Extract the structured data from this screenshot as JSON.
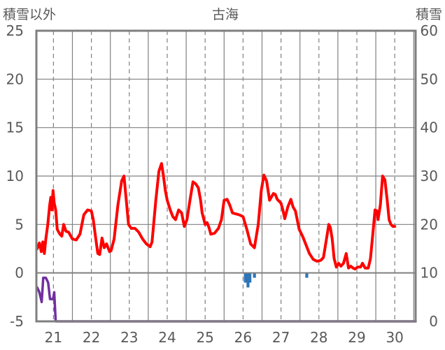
{
  "chart_data": {
    "type": "line",
    "title": "古海",
    "ylabel_left": "積雪以外",
    "ylabel_right": "積雪",
    "grid": true,
    "x_ticks": [
      "21",
      "22",
      "23",
      "24",
      "25",
      "26",
      "27",
      "28",
      "29",
      "30"
    ],
    "x_range": [
      20.55,
      30.55
    ],
    "y_left": {
      "ticks": [
        25,
        20,
        15,
        10,
        5,
        0,
        -5
      ],
      "range": [
        -5,
        25
      ]
    },
    "y_right": {
      "ticks": [
        60,
        50,
        40,
        30,
        20,
        10,
        0
      ],
      "range": [
        0,
        60
      ]
    },
    "colors": {
      "temperature": "#ff0000",
      "precipitation": "#7030a0",
      "snow_depth": "#2e75b6",
      "axis": "#7f7f7f",
      "grid": "#808080"
    },
    "series": [
      {
        "axis": "left",
        "style": "line",
        "color": "#ff0000",
        "points": [
          [
            20.57,
            2.5
          ],
          [
            20.63,
            3.1
          ],
          [
            20.68,
            2.2
          ],
          [
            20.72,
            3.2
          ],
          [
            20.76,
            2.0
          ],
          [
            20.8,
            3.5
          ],
          [
            20.85,
            5.0
          ],
          [
            20.9,
            7.0
          ],
          [
            20.93,
            7.8
          ],
          [
            20.96,
            6.5
          ],
          [
            20.99,
            8.5
          ],
          [
            21.02,
            7.2
          ],
          [
            21.06,
            6.5
          ],
          [
            21.1,
            4.5
          ],
          [
            21.17,
            4.0
          ],
          [
            21.22,
            3.8
          ],
          [
            21.27,
            5.0
          ],
          [
            21.33,
            4.3
          ],
          [
            21.4,
            4.2
          ],
          [
            21.5,
            3.5
          ],
          [
            21.6,
            3.4
          ],
          [
            21.7,
            4.0
          ],
          [
            21.8,
            6.0
          ],
          [
            21.9,
            6.5
          ],
          [
            22.0,
            6.4
          ],
          [
            22.05,
            5.5
          ],
          [
            22.1,
            4.0
          ],
          [
            22.17,
            2.0
          ],
          [
            22.22,
            1.9
          ],
          [
            22.28,
            3.6
          ],
          [
            22.34,
            2.6
          ],
          [
            22.4,
            3.0
          ],
          [
            22.48,
            2.2
          ],
          [
            22.52,
            2.3
          ],
          [
            22.6,
            3.5
          ],
          [
            22.7,
            7.0
          ],
          [
            22.8,
            9.5
          ],
          [
            22.86,
            10.0
          ],
          [
            22.92,
            7.5
          ],
          [
            22.98,
            5.0
          ],
          [
            23.05,
            4.6
          ],
          [
            23.15,
            4.6
          ],
          [
            23.25,
            4.2
          ],
          [
            23.35,
            3.5
          ],
          [
            23.45,
            3.0
          ],
          [
            23.55,
            2.7
          ],
          [
            23.6,
            3.2
          ],
          [
            23.7,
            7.5
          ],
          [
            23.78,
            10.5
          ],
          [
            23.85,
            11.3
          ],
          [
            23.9,
            10.0
          ],
          [
            23.95,
            8.5
          ],
          [
            24.0,
            7.5
          ],
          [
            24.08,
            6.5
          ],
          [
            24.15,
            5.8
          ],
          [
            24.22,
            5.5
          ],
          [
            24.3,
            6.5
          ],
          [
            24.38,
            6.2
          ],
          [
            24.45,
            4.8
          ],
          [
            24.52,
            5.5
          ],
          [
            24.6,
            7.5
          ],
          [
            24.68,
            9.4
          ],
          [
            24.75,
            9.2
          ],
          [
            24.82,
            8.8
          ],
          [
            24.88,
            7.5
          ],
          [
            24.92,
            6.2
          ],
          [
            25.0,
            5.0
          ],
          [
            25.05,
            5.2
          ],
          [
            25.1,
            4.7
          ],
          [
            25.15,
            4.0
          ],
          [
            25.25,
            4.1
          ],
          [
            25.35,
            4.6
          ],
          [
            25.43,
            5.5
          ],
          [
            25.5,
            7.5
          ],
          [
            25.58,
            7.6
          ],
          [
            25.65,
            7.0
          ],
          [
            25.72,
            6.2
          ],
          [
            25.8,
            6.1
          ],
          [
            25.9,
            6.0
          ],
          [
            26.0,
            5.8
          ],
          [
            26.1,
            4.5
          ],
          [
            26.2,
            3.0
          ],
          [
            26.3,
            2.6
          ],
          [
            26.4,
            5.0
          ],
          [
            26.48,
            8.5
          ],
          [
            26.55,
            10.1
          ],
          [
            26.62,
            9.5
          ],
          [
            26.7,
            7.5
          ],
          [
            26.8,
            8.2
          ],
          [
            26.85,
            8.1
          ],
          [
            26.9,
            7.6
          ],
          [
            27.0,
            7.2
          ],
          [
            27.05,
            6.5
          ],
          [
            27.1,
            5.6
          ],
          [
            27.18,
            6.8
          ],
          [
            27.26,
            7.6
          ],
          [
            27.32,
            6.8
          ],
          [
            27.38,
            6.4
          ],
          [
            27.48,
            4.5
          ],
          [
            27.58,
            3.7
          ],
          [
            27.65,
            3.0
          ],
          [
            27.75,
            2.0
          ],
          [
            27.85,
            1.4
          ],
          [
            27.95,
            1.2
          ],
          [
            28.05,
            1.3
          ],
          [
            28.12,
            1.6
          ],
          [
            28.2,
            3.5
          ],
          [
            28.26,
            5.0
          ],
          [
            28.3,
            4.7
          ],
          [
            28.35,
            3.5
          ],
          [
            28.4,
            1.5
          ],
          [
            28.46,
            0.6
          ],
          [
            28.52,
            1.0
          ],
          [
            28.58,
            0.7
          ],
          [
            28.65,
            1.0
          ],
          [
            28.72,
            2.0
          ],
          [
            28.78,
            0.5
          ],
          [
            28.84,
            0.7
          ],
          [
            28.9,
            0.5
          ],
          [
            28.95,
            0.4
          ],
          [
            29.02,
            0.6
          ],
          [
            29.1,
            0.6
          ],
          [
            29.15,
            1.0
          ],
          [
            29.22,
            0.5
          ],
          [
            29.3,
            0.5
          ],
          [
            29.36,
            1.5
          ],
          [
            29.42,
            4.0
          ],
          [
            29.48,
            6.5
          ],
          [
            29.53,
            6.4
          ],
          [
            29.56,
            5.5
          ],
          [
            29.62,
            7.0
          ],
          [
            29.68,
            10.0
          ],
          [
            29.74,
            9.6
          ],
          [
            29.8,
            7.5
          ],
          [
            29.85,
            5.5
          ],
          [
            29.9,
            5.0
          ],
          [
            29.95,
            4.8
          ],
          [
            30.0,
            4.8
          ]
        ]
      },
      {
        "axis": "left",
        "style": "line",
        "color": "#7030a0",
        "points": [
          [
            20.57,
            -1.5
          ],
          [
            20.63,
            -2.0
          ],
          [
            20.69,
            -3.0
          ],
          [
            20.73,
            -0.5
          ],
          [
            20.8,
            -0.5
          ],
          [
            20.86,
            -1.0
          ],
          [
            20.91,
            -2.7
          ],
          [
            20.99,
            -2.7
          ],
          [
            21.02,
            -2.0
          ],
          [
            21.06,
            -5.0
          ],
          [
            30.55,
            -5.0
          ]
        ]
      },
      {
        "axis": "right",
        "style": "bars",
        "color": "#2e75b6",
        "points": [
          [
            26.06,
            8.0
          ],
          [
            26.1,
            8.0
          ],
          [
            26.13,
            7.0
          ],
          [
            26.18,
            8.0
          ],
          [
            26.3,
            9.0
          ],
          [
            27.68,
            9.0
          ]
        ]
      }
    ]
  }
}
